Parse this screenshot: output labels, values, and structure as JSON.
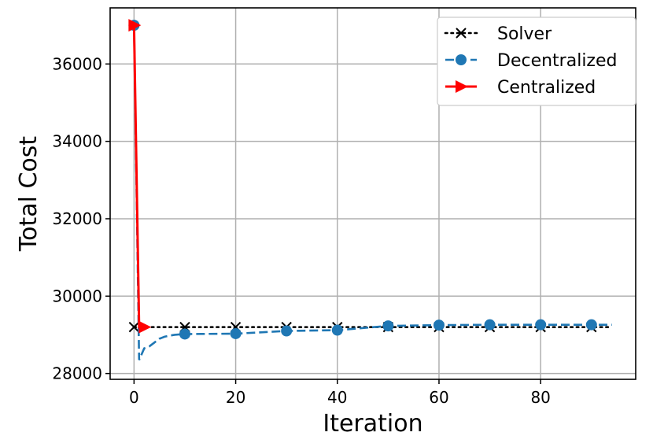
{
  "chart_data": {
    "type": "line",
    "xlabel": "Iteration",
    "ylabel": "Total Cost",
    "xlim": [
      -4.7,
      98.7
    ],
    "ylim": [
      27850,
      37450
    ],
    "xticks": [
      0,
      20,
      40,
      60,
      80
    ],
    "yticks": [
      28000,
      30000,
      32000,
      34000,
      36000
    ],
    "xtick_labels": [
      "0",
      "20",
      "40",
      "60",
      "80"
    ],
    "ytick_labels": [
      "28000",
      "30000",
      "32000",
      "34000",
      "36000"
    ],
    "grid": true,
    "legend": "top-right",
    "series": [
      {
        "name": "Solver",
        "color": "#000000",
        "linestyle": "dotted",
        "marker": "x",
        "line_x": [
          0,
          94
        ],
        "line_y": [
          29200,
          29200
        ],
        "markers_x": [
          0,
          10,
          20,
          30,
          40,
          50,
          60,
          70,
          80,
          90
        ],
        "markers_y": [
          29200,
          29200,
          29200,
          29200,
          29200,
          29200,
          29200,
          29200,
          29200,
          29200
        ]
      },
      {
        "name": "Decentralized",
        "color": "#1f77b4",
        "linestyle": "dashed",
        "marker": "o",
        "line_x": [
          0,
          1,
          2,
          3,
          4,
          5,
          6,
          7,
          8,
          10,
          20,
          30,
          40,
          50,
          60,
          70,
          80,
          90,
          94
        ],
        "line_y": [
          37000,
          28350,
          28650,
          28700,
          28800,
          28900,
          28950,
          28980,
          29000,
          29020,
          29030,
          29100,
          29120,
          29230,
          29250,
          29260,
          29260,
          29260,
          29260
        ],
        "markers_x": [
          0,
          10,
          20,
          30,
          40,
          50,
          60,
          70,
          80,
          90
        ],
        "markers_y": [
          37000,
          29020,
          29030,
          29100,
          29120,
          29230,
          29250,
          29260,
          29260,
          29260
        ]
      },
      {
        "name": "Centralized",
        "color": "#ff0000",
        "linestyle": "solid",
        "marker": ">",
        "line_x": [
          0,
          1,
          2
        ],
        "line_y": [
          37000,
          29200,
          29200
        ],
        "markers_x": [
          0,
          2
        ],
        "markers_y": [
          37000,
          29200
        ]
      }
    ]
  }
}
